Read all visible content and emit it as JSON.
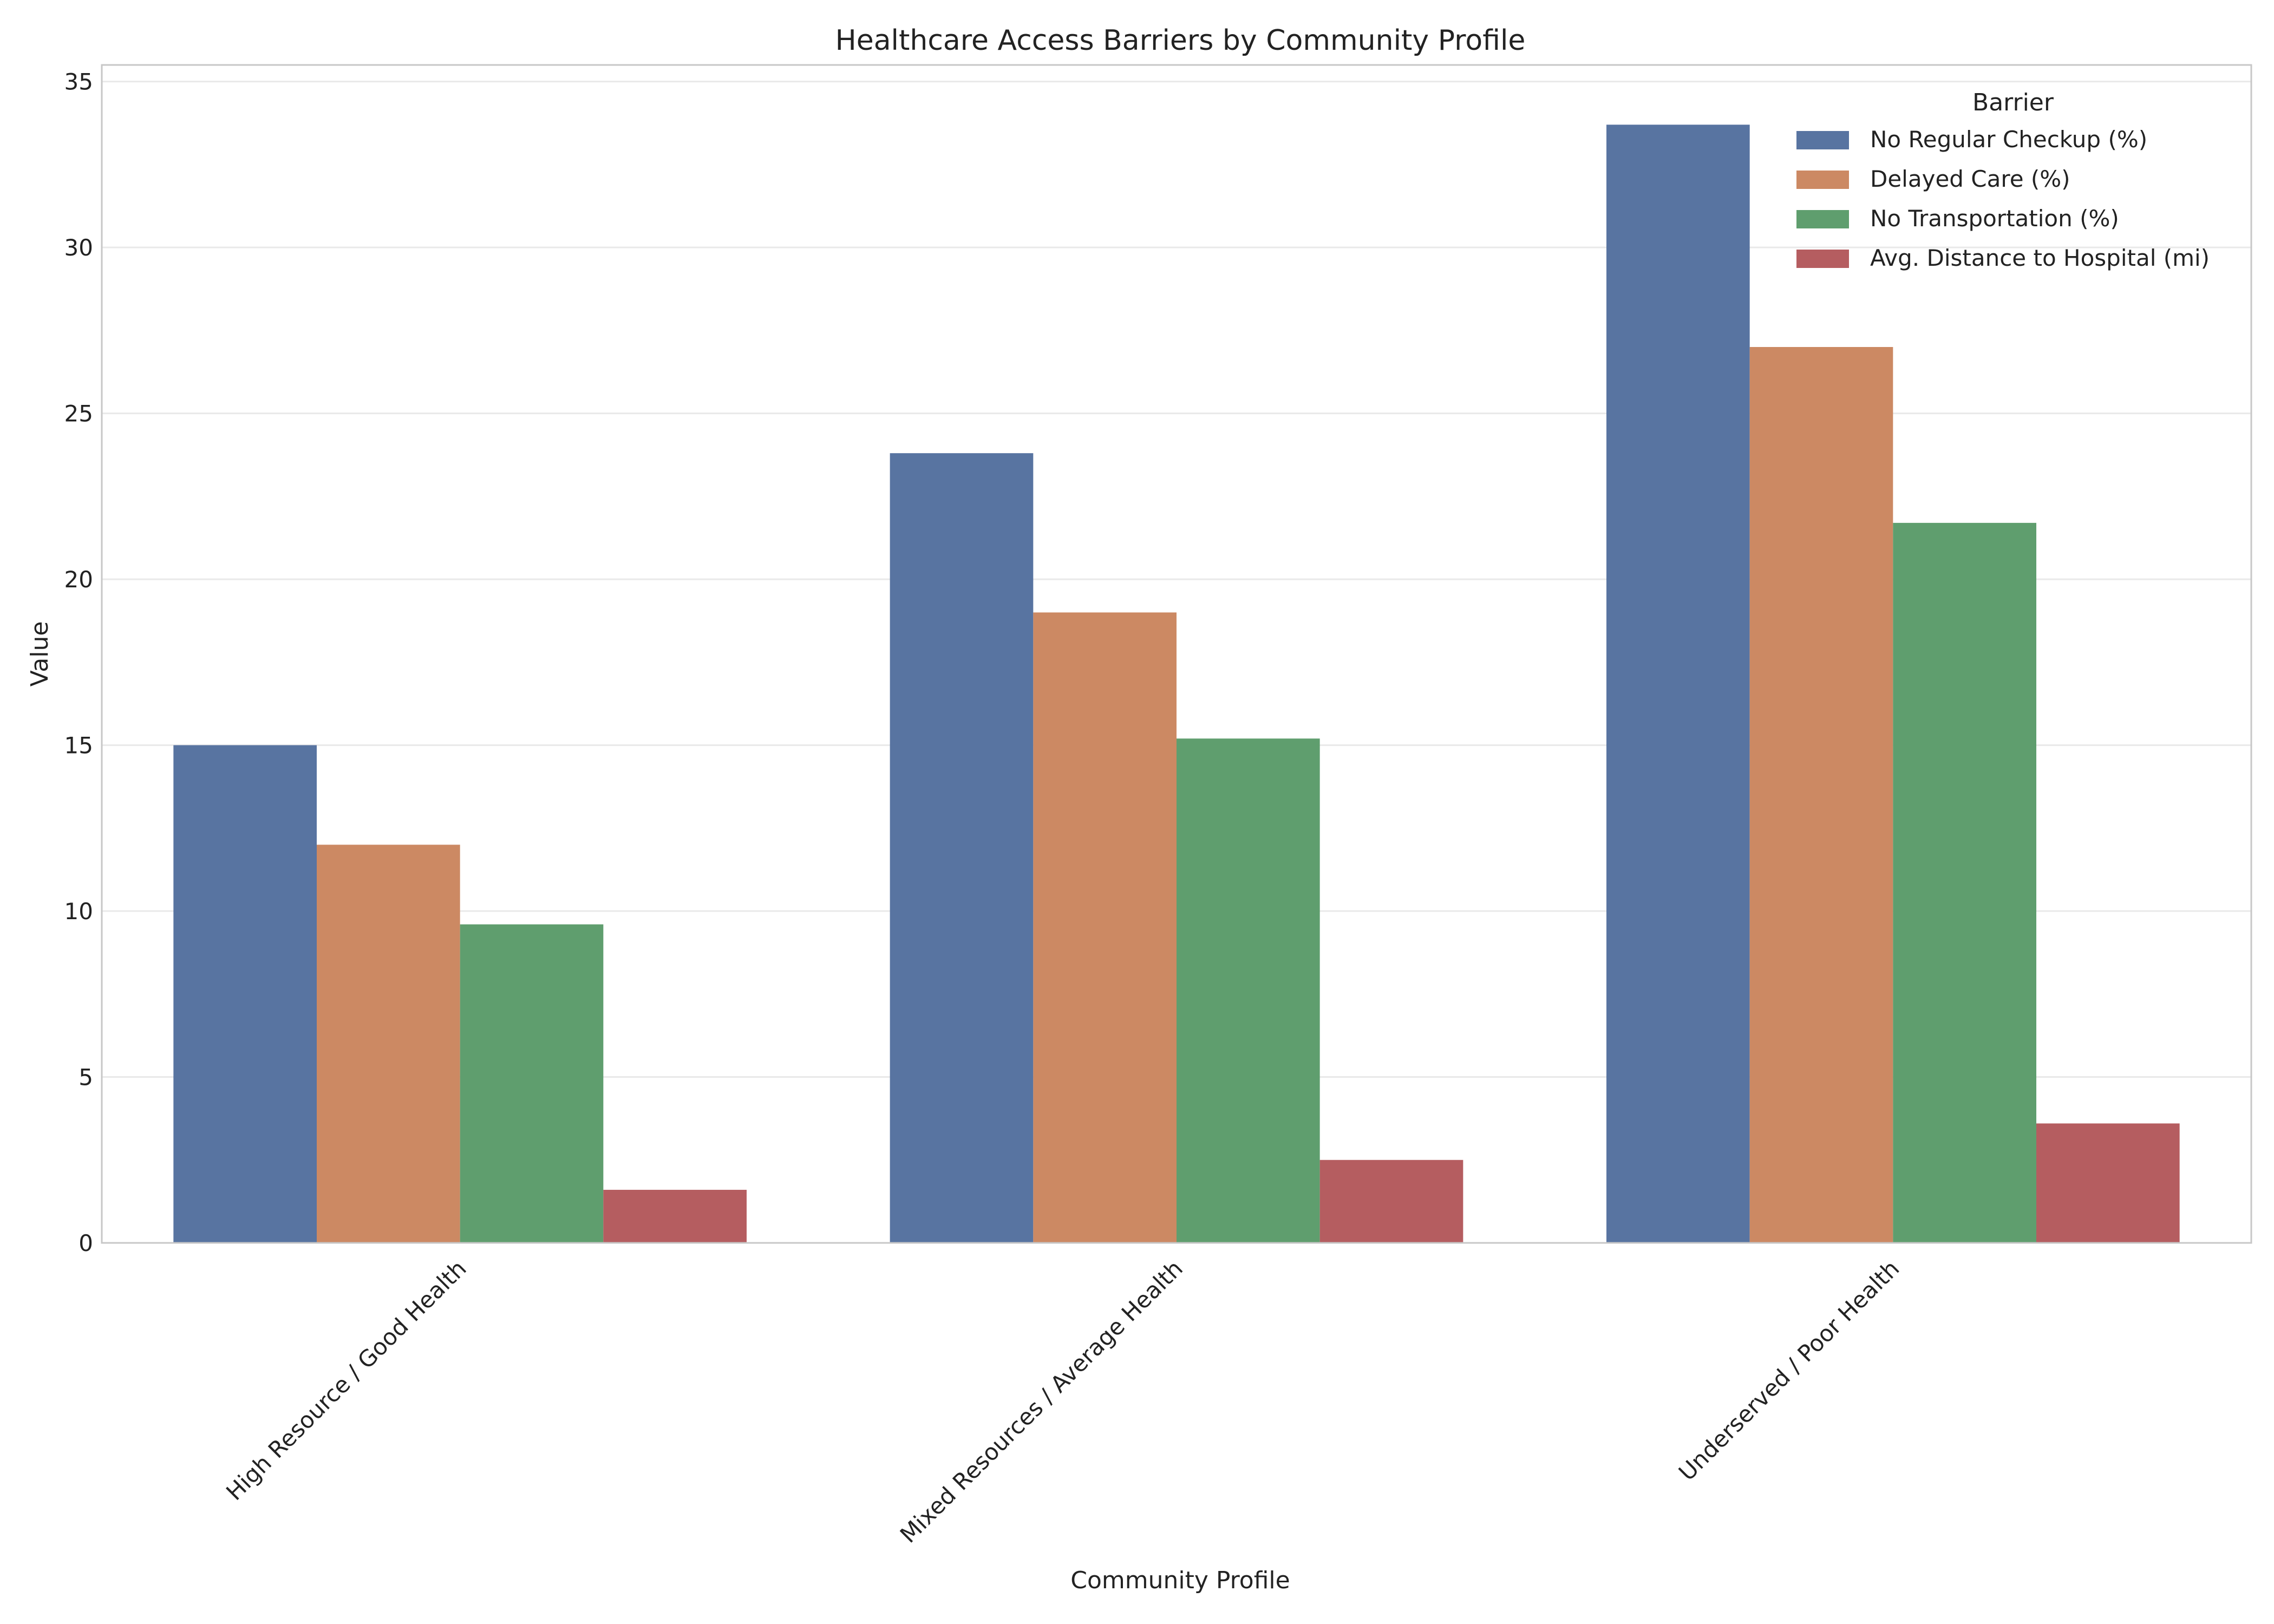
{
  "chart_data": {
    "type": "bar",
    "title": "Healthcare Access Barriers by Community Profile",
    "xlabel": "Community Profile",
    "ylabel": "Value",
    "ylim": [
      0,
      35.5
    ],
    "yticks": [
      0,
      5,
      10,
      15,
      20,
      25,
      30,
      35
    ],
    "grid": true,
    "legend_title": "Barrier",
    "legend_placement": "top-right",
    "categories": [
      "High Resource / Good Health",
      "Mixed Resources / Average Health",
      "Underserved / Poor Health"
    ],
    "series": [
      {
        "name": "No Regular Checkup (%)",
        "color": "#5874a1",
        "values": [
          15.0,
          23.8,
          33.7
        ]
      },
      {
        "name": "Delayed Care (%)",
        "color": "#cc8963",
        "values": [
          12.0,
          19.0,
          27.0
        ]
      },
      {
        "name": "No Transportation (%)",
        "color": "#5f9e6e",
        "values": [
          9.6,
          15.2,
          21.7
        ]
      },
      {
        "name": "Avg. Distance to Hospital (mi)",
        "color": "#b55d60",
        "values": [
          1.6,
          2.5,
          3.6
        ]
      }
    ]
  }
}
